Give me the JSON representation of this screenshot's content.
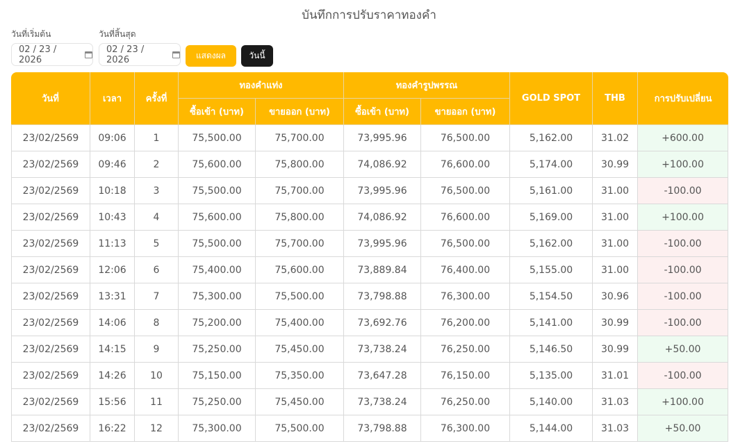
{
  "title": "บันทึกการปรับราคาทองคำ",
  "filters": {
    "start_label": "วันที่เริ่มต้น",
    "start_value": "02 / 23 / 2026",
    "end_label": "วันที่สิ้นสุด",
    "end_value": "02 / 23 / 2026",
    "show_button": "แสดงผล",
    "today_button": "วันนี้"
  },
  "colors": {
    "header": "#ffb900",
    "positive_bg": "#eefbf1",
    "negative_bg": "#fdf0f0"
  },
  "table": {
    "headers": {
      "date": "วันที่",
      "time": "เวลา",
      "round": "ครั้งที่",
      "bar": "ทองคำแท่ง",
      "ornament": "ทองคำรูปพรรณ",
      "buy": "ซื้อเข้า (บาท)",
      "sell": "ขายออก (บาท)",
      "spot": "GOLD SPOT",
      "thb": "THB",
      "change": "การปรับเปลี่ยน"
    },
    "rows": [
      [
        "23/02/2569",
        "09:06",
        "1",
        "75,500.00",
        "75,700.00",
        "73,995.96",
        "76,500.00",
        "5,162.00",
        "31.02",
        "+600.00"
      ],
      [
        "23/02/2569",
        "09:46",
        "2",
        "75,600.00",
        "75,800.00",
        "74,086.92",
        "76,600.00",
        "5,174.00",
        "30.99",
        "+100.00"
      ],
      [
        "23/02/2569",
        "10:18",
        "3",
        "75,500.00",
        "75,700.00",
        "73,995.96",
        "76,500.00",
        "5,161.00",
        "31.00",
        "-100.00"
      ],
      [
        "23/02/2569",
        "10:43",
        "4",
        "75,600.00",
        "75,800.00",
        "74,086.92",
        "76,600.00",
        "5,169.00",
        "31.00",
        "+100.00"
      ],
      [
        "23/02/2569",
        "11:13",
        "5",
        "75,500.00",
        "75,700.00",
        "73,995.96",
        "76,500.00",
        "5,162.00",
        "31.00",
        "-100.00"
      ],
      [
        "23/02/2569",
        "12:06",
        "6",
        "75,400.00",
        "75,600.00",
        "73,889.84",
        "76,400.00",
        "5,155.00",
        "31.00",
        "-100.00"
      ],
      [
        "23/02/2569",
        "13:31",
        "7",
        "75,300.00",
        "75,500.00",
        "73,798.88",
        "76,300.00",
        "5,154.50",
        "30.96",
        "-100.00"
      ],
      [
        "23/02/2569",
        "14:06",
        "8",
        "75,200.00",
        "75,400.00",
        "73,692.76",
        "76,200.00",
        "5,141.00",
        "30.99",
        "-100.00"
      ],
      [
        "23/02/2569",
        "14:15",
        "9",
        "75,250.00",
        "75,450.00",
        "73,738.24",
        "76,250.00",
        "5,146.50",
        "30.99",
        "+50.00"
      ],
      [
        "23/02/2569",
        "14:26",
        "10",
        "75,150.00",
        "75,350.00",
        "73,647.28",
        "76,150.00",
        "5,135.00",
        "31.01",
        "-100.00"
      ],
      [
        "23/02/2569",
        "15:56",
        "11",
        "75,250.00",
        "75,450.00",
        "73,738.24",
        "76,250.00",
        "5,140.00",
        "31.03",
        "+100.00"
      ],
      [
        "23/02/2569",
        "16:22",
        "12",
        "75,300.00",
        "75,500.00",
        "73,798.88",
        "76,300.00",
        "5,144.00",
        "31.03",
        "+50.00"
      ]
    ]
  }
}
